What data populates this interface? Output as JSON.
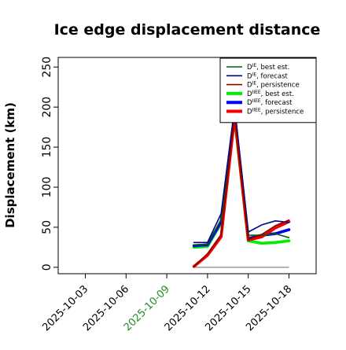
{
  "chart_data": {
    "type": "line",
    "title": "Ice edge displacement distance",
    "xlabel": "",
    "ylabel": "Displacement (km)",
    "ylim": [
      -8,
      262
    ],
    "xlim": [
      "2025-10-01",
      "2025-10-20"
    ],
    "yticks": [
      0,
      50,
      100,
      150,
      200,
      250
    ],
    "xticks": [
      {
        "label": "2025-10-03",
        "color": "#000000"
      },
      {
        "label": "2025-10-06",
        "color": "#000000"
      },
      {
        "label": "2025-10-09",
        "color": "#228B22"
      },
      {
        "label": "2025-10-12",
        "color": "#000000"
      },
      {
        "label": "2025-10-15",
        "color": "#000000"
      },
      {
        "label": "2025-10-18",
        "color": "#000000"
      }
    ],
    "x": [
      "2025-10-11",
      "2025-10-12",
      "2025-10-13",
      "2025-10-14",
      "2025-10-15",
      "2025-10-16",
      "2025-10-17",
      "2025-10-18"
    ],
    "grid": false,
    "legend_position": "top-right",
    "series": [
      {
        "name": "D^IE, best est.",
        "legend_label": "D",
        "legend_sup": "IE",
        "legend_suffix": ", best est.",
        "color": "#006400",
        "style": "thin",
        "values": [
          28,
          29,
          60,
          190,
          40,
          40,
          42,
          37
        ]
      },
      {
        "name": "D^IE, forecast",
        "legend_label": "D",
        "legend_sup": "IE",
        "legend_suffix": ", forecast",
        "color": "#00008B",
        "style": "thin",
        "values": [
          31,
          31,
          67,
          200,
          44,
          53,
          58,
          56
        ]
      },
      {
        "name": "D^IE, persistence",
        "legend_label": "D",
        "legend_sup": "IE",
        "legend_suffix": ", persistence",
        "color": "#8B0000",
        "style": "thin",
        "values": [
          1,
          17,
          41,
          193,
          35,
          41,
          52,
          59
        ]
      },
      {
        "name": "D^IIEE, best est.",
        "legend_label": "D",
        "legend_sup": "IIEE",
        "legend_suffix": ", best est.",
        "color": "#00EE00",
        "style": "thick",
        "values": [
          25,
          26,
          55,
          185,
          33,
          30,
          31,
          33
        ]
      },
      {
        "name": "D^IIEE, forecast",
        "legend_label": "D",
        "legend_sup": "IIEE",
        "legend_suffix": ", forecast",
        "color": "#0000EE",
        "style": "thick",
        "values": [
          27,
          28,
          57,
          190,
          36,
          40,
          42,
          47
        ]
      },
      {
        "name": "D^IIEE, persistence",
        "legend_label": "D",
        "legend_sup": "IIEE",
        "legend_suffix": ", persistence",
        "color": "#EE0000",
        "style": "thick",
        "values": [
          1,
          15,
          38,
          188,
          34,
          38,
          49,
          57
        ]
      }
    ],
    "reference_line": {
      "color": "#888888",
      "values": [
        0,
        0,
        0,
        0,
        0,
        0,
        0,
        0
      ]
    }
  }
}
